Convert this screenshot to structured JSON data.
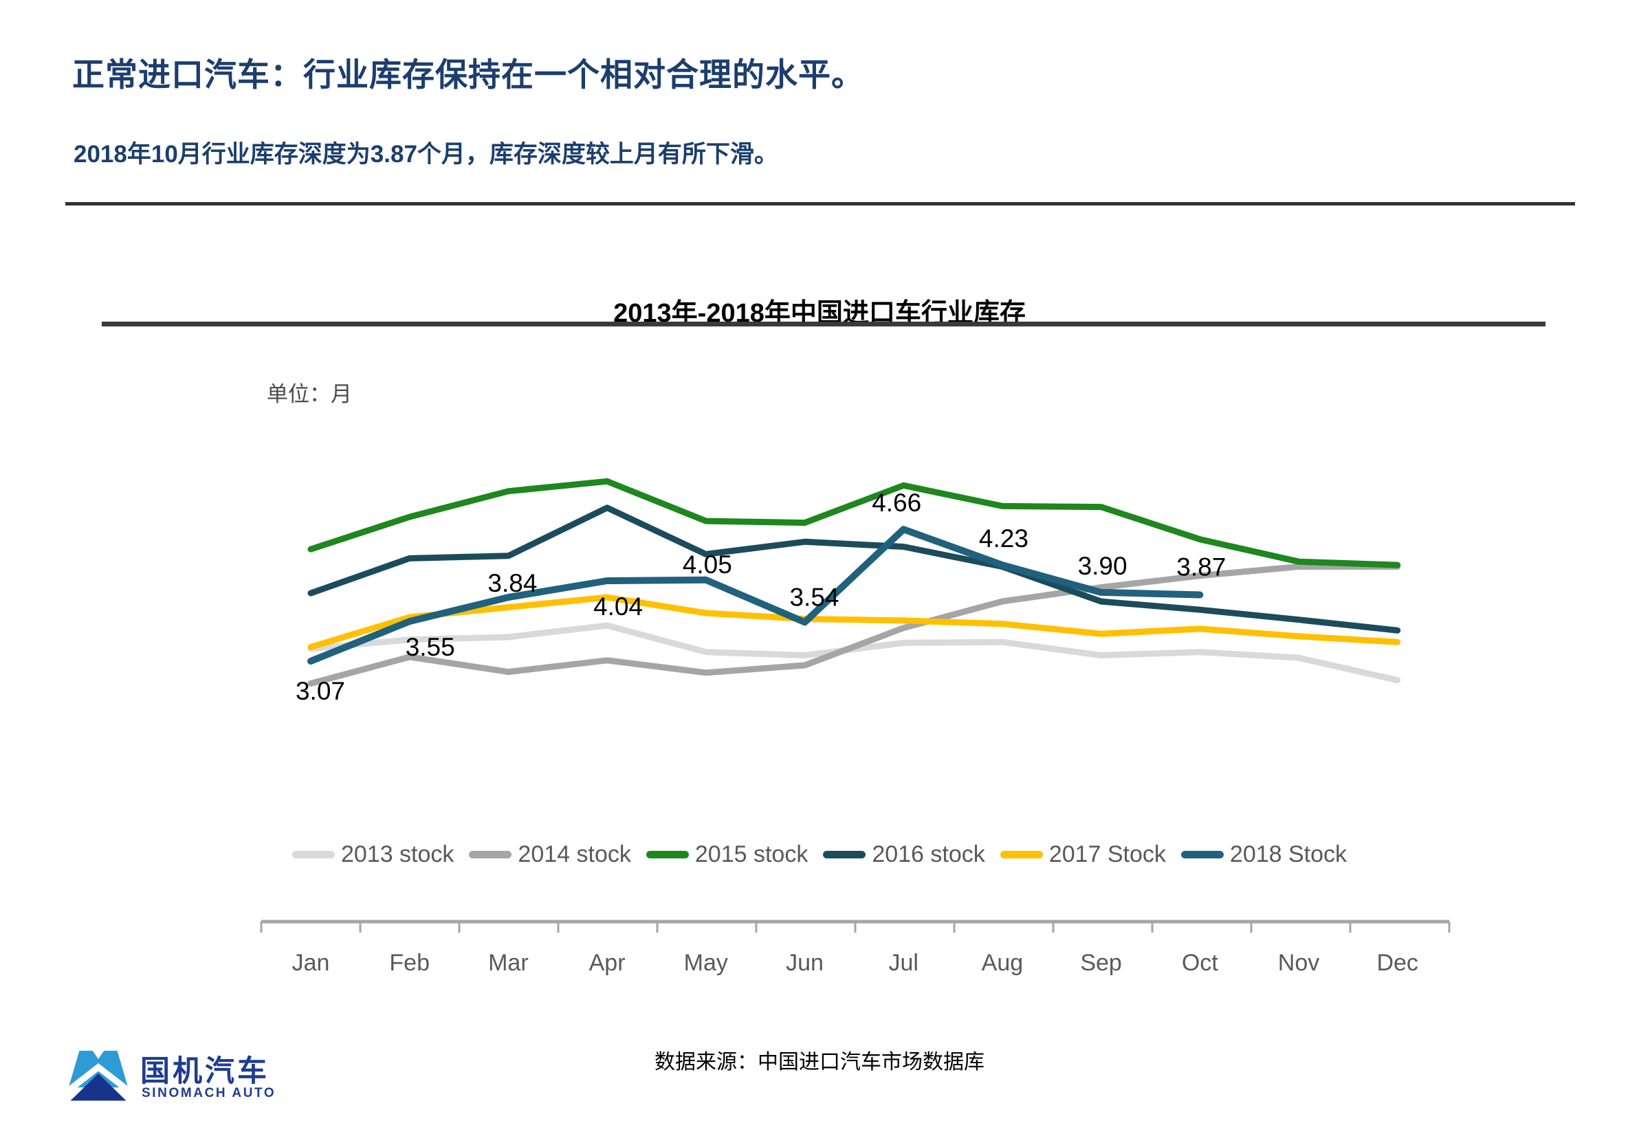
{
  "header": {
    "title": "正常进口汽车：行业库存保持在一个相对合理的水平。",
    "subtitle": "2018年10月行业库存深度为3.87个月，库存深度较上月有所下滑。"
  },
  "chart": {
    "title": "2013年-2018年中国进口车行业库存",
    "unit_label": "单位：月"
  },
  "chart_data": {
    "type": "line",
    "title": "2013年-2018年中国进口车行业库存",
    "unit": "月",
    "categories": [
      "Jan",
      "Feb",
      "Mar",
      "Apr",
      "May",
      "Jun",
      "Jul",
      "Aug",
      "Sep",
      "Oct",
      "Nov",
      "Dec"
    ],
    "series": [
      {
        "name": "2013 stock",
        "color": "#d9d9d9",
        "values": [
          3.22,
          3.33,
          3.36,
          3.5,
          3.18,
          3.14,
          3.29,
          3.3,
          3.14,
          3.18,
          3.11,
          2.84
        ]
      },
      {
        "name": "2014 stock",
        "color": "#a5a5a5",
        "values": [
          2.8,
          3.12,
          2.94,
          3.08,
          2.93,
          3.02,
          3.47,
          3.79,
          3.96,
          4.1,
          4.21,
          4.21
        ]
      },
      {
        "name": "2015 stock",
        "color": "#1e871e",
        "values": [
          4.42,
          4.81,
          5.12,
          5.24,
          4.76,
          4.74,
          5.19,
          4.94,
          4.93,
          4.54,
          4.27,
          4.23
        ]
      },
      {
        "name": "2016 stock",
        "color": "#1c4b5c",
        "values": [
          3.89,
          4.31,
          4.34,
          4.92,
          4.36,
          4.51,
          4.45,
          4.21,
          3.79,
          3.69,
          3.57,
          3.44
        ]
      },
      {
        "name": "2017 Stock",
        "color": "#ffc000",
        "values": [
          3.24,
          3.6,
          3.72,
          3.84,
          3.65,
          3.58,
          3.56,
          3.52,
          3.4,
          3.46,
          3.37,
          3.3
        ]
      },
      {
        "name": "2018 Stock",
        "color": "#20617e",
        "values": [
          3.07,
          3.55,
          3.84,
          4.04,
          4.05,
          3.54,
          4.66,
          4.23,
          3.9,
          3.87,
          null,
          null
        ],
        "data_labels": [
          "3.07",
          "3.55",
          "3.84",
          "4.04",
          "4.05",
          "3.54",
          "4.66",
          "4.23",
          "3.90",
          "3.87"
        ]
      }
    ],
    "ylim": [
      2.5,
      5.5
    ],
    "grid": false,
    "legend_position": "bottom",
    "axis_color": "#a6a6a6",
    "label_color": "#595959",
    "data_label_color": "#000000"
  },
  "footer": {
    "logo_cn": "国机汽车",
    "logo_en": "SINOMACH AUTO",
    "source": "数据来源：中国进口汽车市场数据库"
  }
}
